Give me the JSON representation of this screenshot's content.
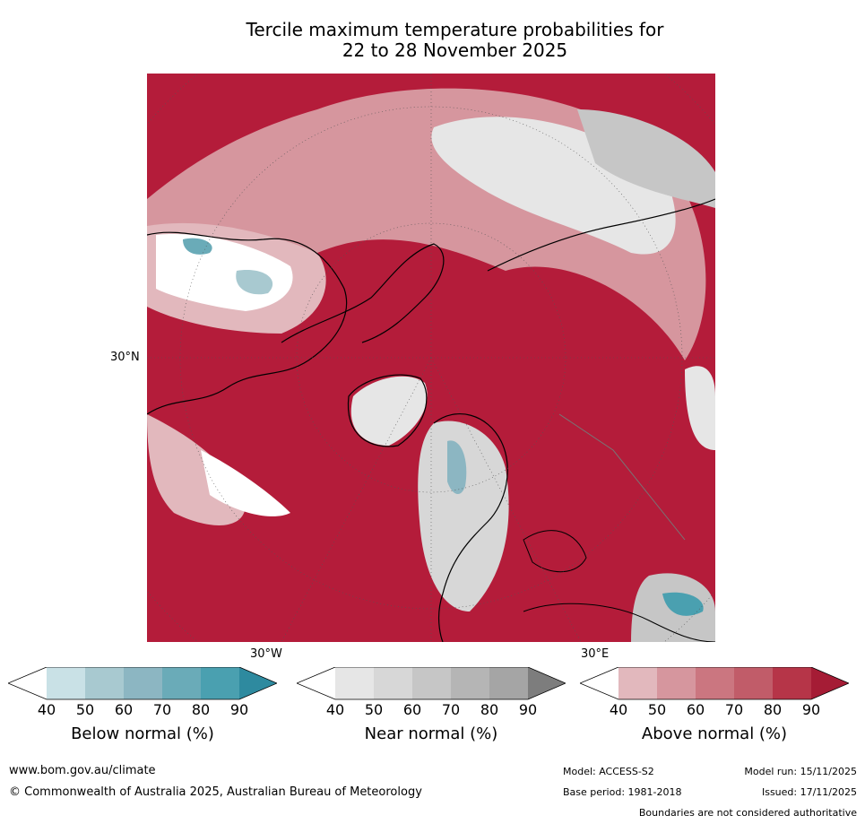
{
  "title": {
    "line1": "Tercile maximum temperature probabilities for",
    "line2": "22 to 28 November 2025"
  },
  "map": {
    "lat_label": "30°N",
    "lon_label_west": "30°W",
    "lon_label_east": "30°E"
  },
  "colorbars": [
    {
      "label": "Below normal (%)",
      "ticks": [
        "40",
        "50",
        "60",
        "70",
        "80",
        "90"
      ],
      "colors": [
        "#ffffff",
        "#c9e1e6",
        "#a8c9d0",
        "#8cb6c2",
        "#6aabb8",
        "#4aa0b0",
        "#2e8a9f"
      ]
    },
    {
      "label": "Near normal (%)",
      "ticks": [
        "40",
        "50",
        "60",
        "70",
        "80",
        "90"
      ],
      "colors": [
        "#ffffff",
        "#e6e6e6",
        "#d7d7d7",
        "#c6c6c6",
        "#b5b5b5",
        "#a5a5a5",
        "#7d7d7d"
      ]
    },
    {
      "label": "Above normal (%)",
      "ticks": [
        "40",
        "50",
        "60",
        "70",
        "80",
        "90"
      ],
      "colors": [
        "#ffffff",
        "#e2b8bd",
        "#d6969e",
        "#cb7680",
        "#c15c69",
        "#b63548",
        "#a51c35"
      ]
    }
  ],
  "footer": {
    "website": "www.bom.gov.au/climate",
    "copyright": "© Commonwealth of Australia 2025, Australian Bureau of Meteorology",
    "model": "Model: ACCESS-S2",
    "base_period": "Base period: 1981-2018",
    "model_run": "Model run: 15/11/2025",
    "issued": "Issued: 17/11/2025",
    "boundaries": "Boundaries are not considered authoritative"
  }
}
